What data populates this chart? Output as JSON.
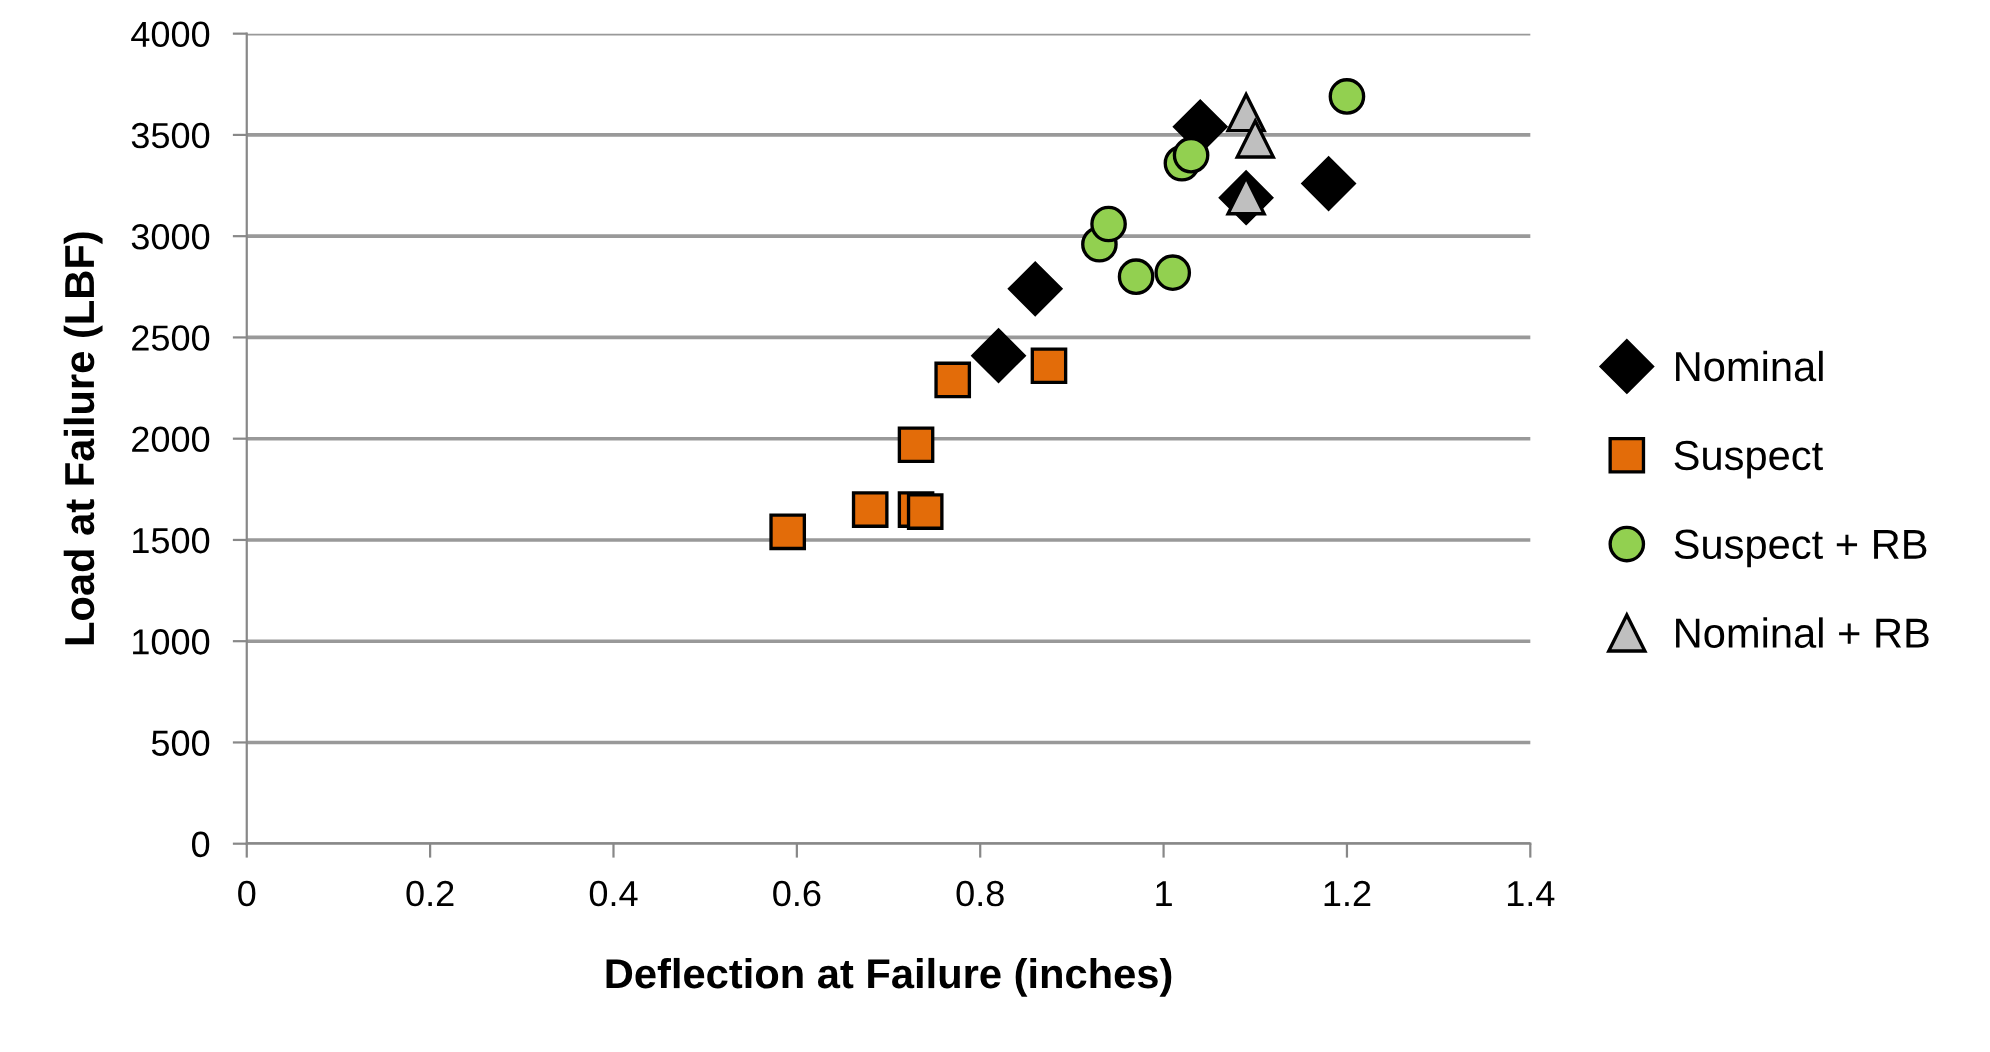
{
  "chart_data": {
    "type": "scatter",
    "xlabel": "Deflection at Failure (inches)",
    "ylabel": "Load at Failure (LBF)",
    "xlim": [
      0,
      1.4
    ],
    "xticks": [
      0,
      0.2,
      0.4,
      0.6,
      0.8,
      1,
      1.2,
      1.4
    ],
    "ylim": [
      0,
      4000
    ],
    "yticks": [
      0,
      500,
      1000,
      1500,
      2000,
      2500,
      3000,
      3500,
      4000
    ],
    "grid": "y",
    "legend": "right",
    "series": [
      {
        "name": "Nominal",
        "color": "#000000",
        "marker": "diamond",
        "x": [
          0.82,
          0.86,
          1.04,
          1.09,
          1.18
        ],
        "values": [
          2410,
          2740,
          3540,
          3190,
          3260
        ]
      },
      {
        "name": "Suspect",
        "color": "#e36c09",
        "marker": "square",
        "x": [
          0.59,
          0.68,
          0.73,
          0.74,
          0.73,
          0.77,
          0.875
        ],
        "values": [
          1540,
          1650,
          1650,
          1640,
          1970,
          2290,
          2360
        ]
      },
      {
        "name": "Suspect + RB",
        "color": "#92d050",
        "marker": "circle",
        "x": [
          0.93,
          0.94,
          0.97,
          1.01,
          1.02,
          1.03,
          1.2
        ],
        "values": [
          2960,
          3060,
          2800,
          2820,
          3360,
          3400,
          3690
        ]
      },
      {
        "name": "Nominal + RB",
        "color": "#bfbfbf",
        "marker": "triangle",
        "x": [
          1.09,
          1.1,
          1.09
        ],
        "values": [
          3610,
          3480,
          3200
        ]
      }
    ]
  }
}
